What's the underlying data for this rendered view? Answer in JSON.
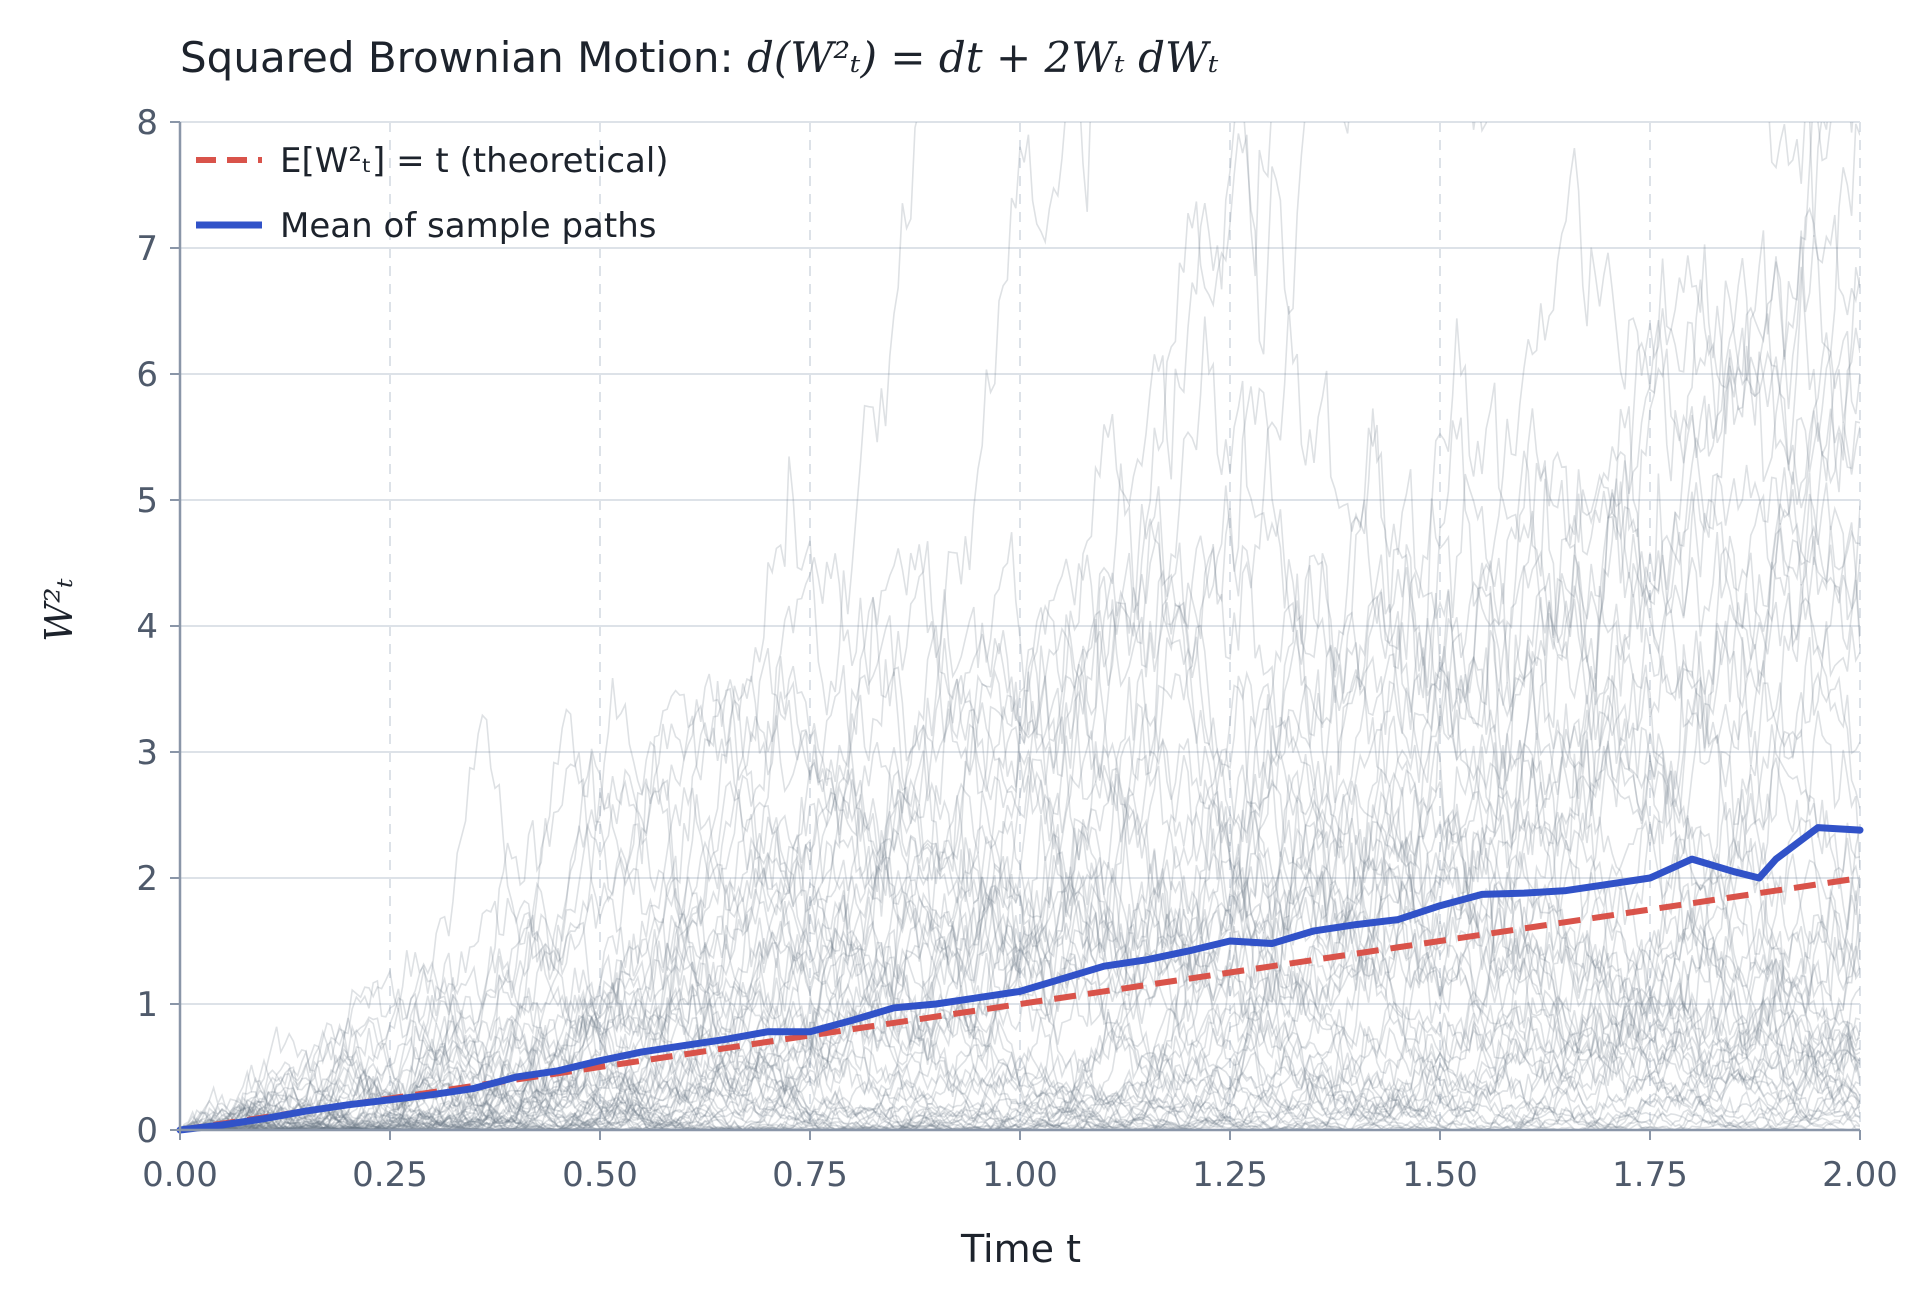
{
  "chart_data": {
    "type": "line",
    "title": {
      "prefix": "Squared Brownian Motion: ",
      "formula": "d(W²ₜ) = dt + 2Wₜ dWₜ"
    },
    "xlabel": "Time t",
    "ylabel": "W²ₜ",
    "xlim": [
      0,
      2
    ],
    "ylim": [
      0,
      8
    ],
    "xticks": [
      0,
      0.25,
      0.5,
      0.75,
      1.0,
      1.25,
      1.5,
      1.75,
      2.0
    ],
    "xtick_labels": [
      "0.00",
      "0.25",
      "0.50",
      "0.75",
      "1.00",
      "1.25",
      "1.50",
      "1.75",
      "2.00"
    ],
    "yticks": [
      0,
      1,
      2,
      3,
      4,
      5,
      6,
      7,
      8
    ],
    "ytick_labels": [
      "0",
      "1",
      "2",
      "3",
      "4",
      "5",
      "6",
      "7",
      "8"
    ],
    "grid": true,
    "legend_position": "top-left",
    "legend": [
      {
        "label": "E[W²ₜ] = t (theoretical)",
        "color": "#d9534a",
        "style": "dashed"
      },
      {
        "label": "Mean of sample paths",
        "color": "#3152c8",
        "style": "solid"
      }
    ],
    "colors": {
      "theoretical": "#d9534a",
      "mean": "#3152c8",
      "sample_paths": "#6b7686",
      "grid": "#dde2e8",
      "axis": "#8a96a8"
    },
    "series": [
      {
        "role": "theoretical",
        "x": [
          0,
          2
        ],
        "y": [
          0,
          2
        ]
      },
      {
        "role": "mean",
        "x": [
          0,
          0.05,
          0.1,
          0.15,
          0.2,
          0.25,
          0.3,
          0.35,
          0.4,
          0.45,
          0.5,
          0.55,
          0.6,
          0.65,
          0.7,
          0.75,
          0.8,
          0.85,
          0.9,
          0.95,
          1.0,
          1.05,
          1.1,
          1.15,
          1.2,
          1.25,
          1.3,
          1.35,
          1.4,
          1.45,
          1.5,
          1.55,
          1.6,
          1.65,
          1.7,
          1.75,
          1.8,
          1.85,
          1.88,
          1.9,
          1.95,
          2.0
        ],
        "y": [
          0,
          0.04,
          0.09,
          0.15,
          0.2,
          0.24,
          0.28,
          0.33,
          0.42,
          0.47,
          0.55,
          0.62,
          0.67,
          0.72,
          0.78,
          0.78,
          0.87,
          0.97,
          1.0,
          1.05,
          1.1,
          1.2,
          1.3,
          1.35,
          1.42,
          1.5,
          1.48,
          1.58,
          1.63,
          1.67,
          1.78,
          1.87,
          1.88,
          1.9,
          1.95,
          2.0,
          2.15,
          2.05,
          2.0,
          2.15,
          2.4,
          2.38
        ]
      }
    ],
    "sample_paths": {
      "count": 60,
      "opacity": 0.22,
      "seed": 7
    }
  }
}
